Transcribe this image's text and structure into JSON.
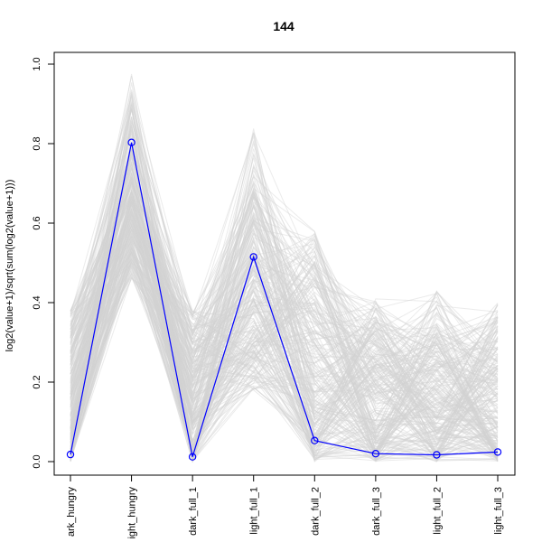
{
  "chart_data": {
    "type": "line",
    "title": "144",
    "xlabel": "",
    "ylabel": "log2(value+1)/sqrt(sum(log2(value+1)))",
    "categories": [
      "dark_hungry",
      "light_hungry",
      "dark_full_1",
      "light_full_1",
      "dark_full_2",
      "dark_full_3",
      "light_full_2",
      "light_full_3"
    ],
    "category_labels_visible": [
      "ark_hungry",
      "ight_hungry",
      "dark_full_1",
      "light_full_1",
      "dark_full_2",
      "dark_full_3",
      "light_full_2",
      "light_full_3"
    ],
    "ylim": [
      0,
      1.0
    ],
    "yticks": [
      "0.0",
      "0.2",
      "0.4",
      "0.6",
      "0.8",
      "1.0"
    ],
    "grid": false,
    "legend": "none",
    "series": [
      {
        "values": [
          0.018,
          0.803,
          0.012,
          0.515,
          0.053,
          0.02,
          0.017,
          0.024
        ],
        "color": "#0000ff",
        "highlight": true
      }
    ],
    "background_cluster": {
      "color": "#d3d3d3",
      "count": 260,
      "ranges": [
        [
          0.0,
          0.38
        ],
        [
          0.46,
          0.99
        ],
        [
          0.0,
          0.38
        ],
        [
          0.18,
          0.87
        ],
        [
          0.0,
          0.58
        ],
        [
          0.0,
          0.41
        ],
        [
          0.0,
          0.43
        ],
        [
          0.0,
          0.4
        ]
      ]
    }
  }
}
